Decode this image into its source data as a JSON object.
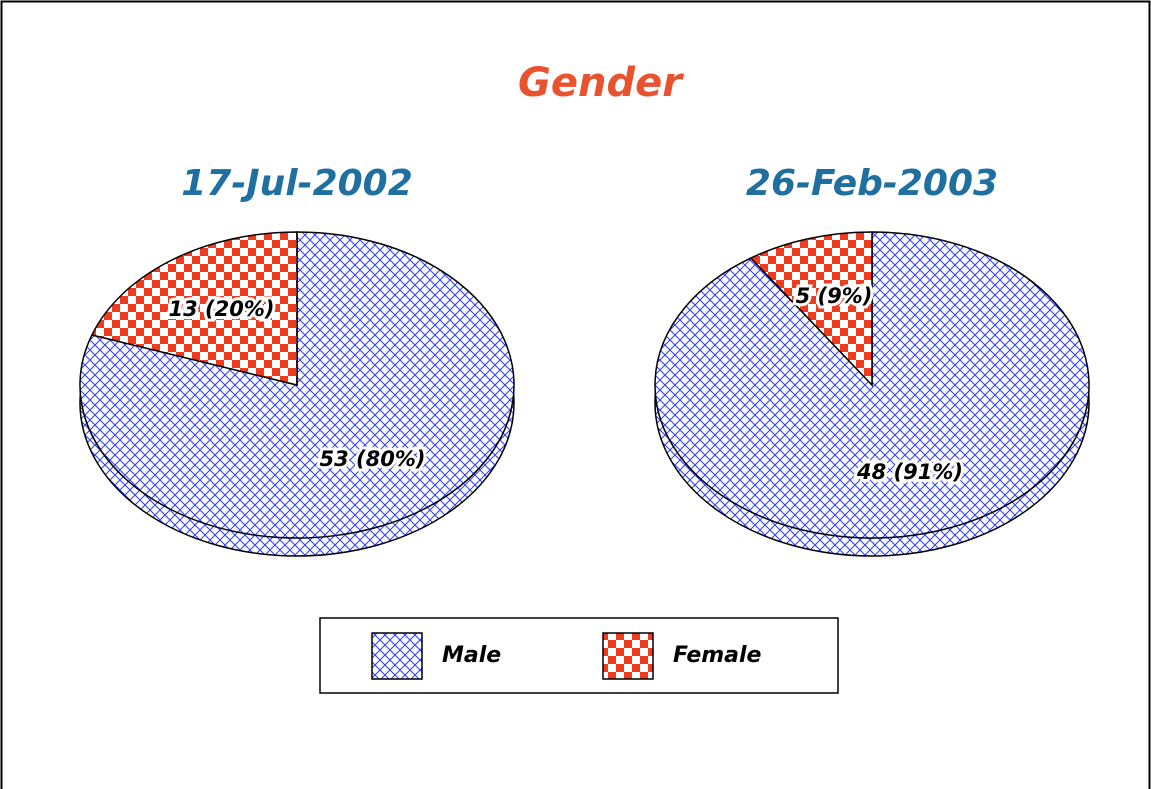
{
  "title": "Gender",
  "chart_data": [
    {
      "type": "pie",
      "title": "17-Jul-2002",
      "categories": [
        "Male",
        "Female"
      ],
      "values": [
        53,
        13
      ],
      "value_labels": [
        "53 (80%)",
        "13 (20%)"
      ],
      "colors": [
        "#2b3bff",
        "#f03c1e"
      ],
      "patterns": [
        "crosshatch",
        "checker"
      ]
    },
    {
      "type": "pie",
      "title": "26-Feb-2003",
      "categories": [
        "Male",
        "Female"
      ],
      "values": [
        48,
        5
      ],
      "value_labels": [
        "48 (91%)",
        "5 (9%)"
      ],
      "colors": [
        "#2b3bff",
        "#f03c1e"
      ],
      "patterns": [
        "crosshatch",
        "checker"
      ]
    }
  ]
}
